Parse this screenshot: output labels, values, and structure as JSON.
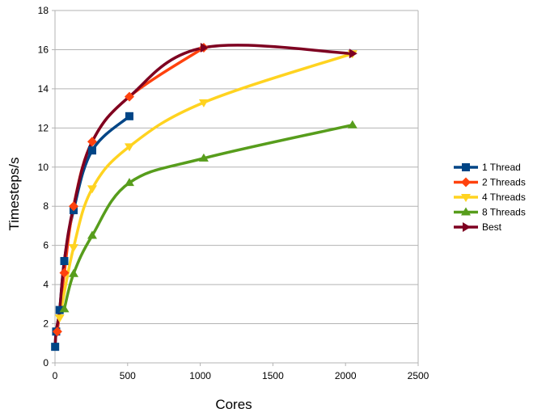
{
  "chart_data": {
    "type": "line",
    "xlabel": "Cores",
    "ylabel": "Timesteps/s",
    "xlim": [
      0,
      2500
    ],
    "ylim": [
      0,
      18
    ],
    "xticks": [
      "0",
      "500",
      "1000",
      "1500",
      "2000",
      "2500"
    ],
    "yticks": [
      "0",
      "2",
      "4",
      "6",
      "8",
      "10",
      "12",
      "14",
      "16",
      "18"
    ],
    "grid": "horizontal",
    "legend_position": "right",
    "series": [
      {
        "name": "1 Thread",
        "color": "#004586",
        "marker": "square",
        "x": [
          1,
          8,
          32,
          64,
          128,
          256,
          512
        ],
        "y": [
          0.82,
          1.6,
          2.7,
          5.2,
          7.8,
          10.85,
          12.6
        ]
      },
      {
        "name": "2 Threads",
        "color": "#ff420e",
        "marker": "diamond",
        "x": [
          16,
          64,
          128,
          256,
          512,
          1024
        ],
        "y": [
          1.6,
          4.6,
          8.0,
          11.3,
          13.6,
          16.1
        ]
      },
      {
        "name": "4 Threads",
        "color": "#ffd320",
        "marker": "triangle-down",
        "x": [
          32,
          128,
          256,
          512,
          1024,
          2048
        ],
        "y": [
          2.3,
          5.9,
          8.9,
          11.05,
          13.3,
          15.8
        ]
      },
      {
        "name": "8 Threads",
        "color": "#579d1c",
        "marker": "triangle-up",
        "x": [
          64,
          128,
          256,
          512,
          1024,
          2048
        ],
        "y": [
          2.75,
          4.55,
          6.5,
          9.2,
          10.45,
          12.15
        ]
      },
      {
        "name": "Best",
        "color": "#7e0021",
        "marker": "triangle-right",
        "x": [
          1,
          8,
          32,
          64,
          128,
          256,
          512,
          1024,
          2048
        ],
        "y": [
          0.82,
          1.6,
          2.7,
          5.2,
          8.0,
          11.3,
          13.6,
          16.1,
          15.8
        ]
      }
    ]
  }
}
